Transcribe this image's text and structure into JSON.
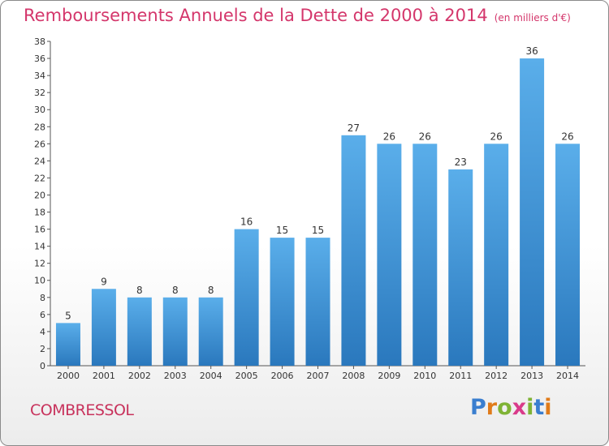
{
  "chart_data": {
    "type": "bar",
    "title": "Remboursements Annuels de la Dette de 2000 à 2014",
    "subtitle": "(en milliers d'€)",
    "categories": [
      "2000",
      "2001",
      "2002",
      "2003",
      "2004",
      "2005",
      "2006",
      "2007",
      "2008",
      "2009",
      "2010",
      "2011",
      "2012",
      "2013",
      "2014"
    ],
    "values": [
      5,
      9,
      8,
      8,
      8,
      16,
      15,
      15,
      27,
      26,
      26,
      23,
      26,
      36,
      26
    ],
    "ylim": [
      0,
      38
    ],
    "ytick_step": 2,
    "grid": false,
    "bar_color": "#4a9fdf",
    "title_color": "#d4366b"
  },
  "footer": {
    "commune": "COMBRESSOL",
    "brand": "Proxiti"
  }
}
